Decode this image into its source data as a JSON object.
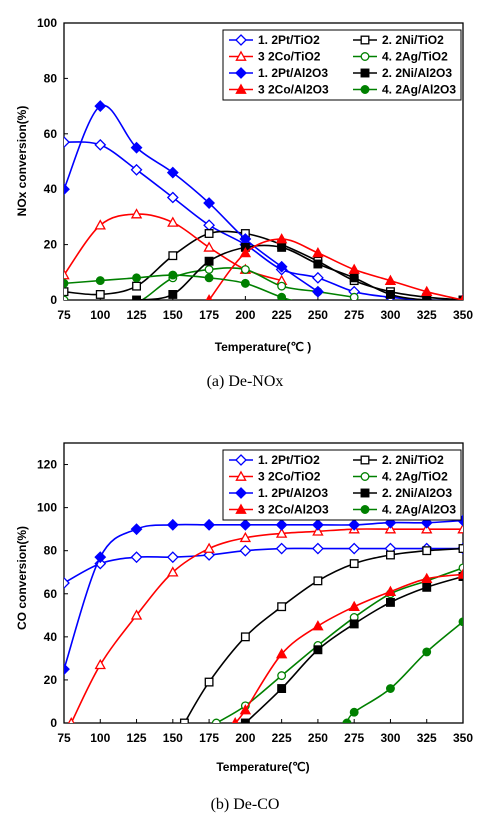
{
  "chart_data": [
    {
      "type": "line",
      "title": "",
      "caption": "(a)  De-NOx",
      "xlabel": "Temperature(℃ )",
      "ylabel": "NOx conversion(%)",
      "xlim": [
        75,
        350
      ],
      "ylim": [
        0,
        100
      ],
      "x_ticks": [
        75,
        100,
        125,
        150,
        175,
        200,
        225,
        250,
        275,
        300,
        325,
        350
      ],
      "y_ticks": [
        0,
        20,
        40,
        60,
        80,
        100
      ],
      "grid": false,
      "legend_position": "top-right",
      "series": [
        {
          "name": "1. 2Pt/TiO2",
          "color": "#0000ff",
          "marker": "diamond-open",
          "x": [
            75,
            100,
            125,
            150,
            175,
            200,
            225,
            250,
            275,
            300,
            325,
            350
          ],
          "y": [
            57,
            56,
            47,
            37,
            27,
            20,
            11,
            8,
            3,
            1,
            0,
            0
          ]
        },
        {
          "name": "2. 2Ni/TiO2",
          "color": "#000000",
          "marker": "square-open",
          "x": [
            75,
            100,
            125,
            150,
            175,
            200,
            225,
            250,
            275,
            300,
            325,
            350
          ],
          "y": [
            3,
            2,
            5,
            16,
            24,
            24,
            20,
            14,
            7,
            3,
            1,
            0
          ]
        },
        {
          "name": "3 2Co/TiO2",
          "color": "#ff0000",
          "marker": "triangle-open",
          "x": [
            75,
            100,
            125,
            150,
            175,
            200,
            225
          ],
          "y": [
            9,
            27,
            31,
            28,
            19,
            11,
            7
          ]
        },
        {
          "name": "4. 2Ag/TiO2",
          "color": "#008000",
          "marker": "circle-open",
          "x": [
            75,
            100,
            125,
            150,
            175,
            200,
            225,
            250,
            275
          ],
          "y": [
            0,
            -2,
            -1,
            8,
            11,
            11,
            5,
            3,
            1
          ]
        },
        {
          "name": "1. 2Pt/Al2O3",
          "color": "#0000ff",
          "marker": "diamond-filled",
          "x": [
            75,
            100,
            125,
            150,
            175,
            200,
            225,
            250
          ],
          "y": [
            40,
            70,
            55,
            46,
            35,
            22,
            12,
            3
          ]
        },
        {
          "name": "2. 2Ni/Al2O3",
          "color": "#000000",
          "marker": "square-filled",
          "x": [
            125,
            150,
            175,
            200,
            225,
            250,
            275,
            300,
            325,
            350
          ],
          "y": [
            0,
            2,
            14,
            19,
            19,
            13,
            8,
            2,
            0,
            0
          ]
        },
        {
          "name": "3 2Co/Al2O3",
          "color": "#ff0000",
          "marker": "triangle-filled",
          "x": [
            175,
            200,
            225,
            250,
            275,
            300,
            325,
            350
          ],
          "y": [
            0,
            17,
            22,
            17,
            11,
            7,
            3,
            0
          ]
        },
        {
          "name": "4. 2Ag/Al2O3",
          "color": "#008000",
          "marker": "circle-filled",
          "x": [
            75,
            100,
            125,
            150,
            175,
            200,
            225,
            250
          ],
          "y": [
            6,
            7,
            8,
            9,
            8,
            6,
            1,
            -3
          ]
        }
      ]
    },
    {
      "type": "line",
      "title": "",
      "caption": "(b)  De-CO",
      "xlabel": "Temperature(℃)",
      "ylabel": "CO conversion(%)",
      "xlim": [
        75,
        350
      ],
      "ylim": [
        0,
        130
      ],
      "x_ticks": [
        75,
        100,
        125,
        150,
        175,
        200,
        225,
        250,
        275,
        300,
        325,
        350
      ],
      "y_ticks": [
        0,
        20,
        40,
        60,
        80,
        100,
        120
      ],
      "grid": false,
      "legend_position": "top-right",
      "series": [
        {
          "name": "1. 2Pt/TiO2",
          "color": "#0000ff",
          "marker": "diamond-open",
          "x": [
            75,
            100,
            125,
            150,
            175,
            200,
            225,
            250,
            275,
            300,
            325,
            350
          ],
          "y": [
            65,
            74,
            77,
            77,
            78,
            80,
            81,
            81,
            81,
            81,
            81,
            81
          ]
        },
        {
          "name": "2. 2Ni/TiO2",
          "color": "#000000",
          "marker": "square-open",
          "x": [
            158,
            175,
            200,
            225,
            250,
            275,
            300,
            325,
            350
          ],
          "y": [
            0,
            19,
            40,
            54,
            66,
            74,
            78,
            80,
            81
          ]
        },
        {
          "name": "3 2Co/TiO2",
          "color": "#ff0000",
          "marker": "triangle-open",
          "x": [
            80,
            100,
            125,
            150,
            175,
            200,
            225,
            250,
            275,
            300,
            325,
            350
          ],
          "y": [
            0,
            27,
            50,
            70,
            81,
            86,
            88,
            89,
            90,
            90,
            90,
            90
          ]
        },
        {
          "name": "4. 2Ag/TiO2",
          "color": "#008000",
          "marker": "circle-open",
          "x": [
            180,
            200,
            225,
            250,
            275,
            300,
            325,
            350
          ],
          "y": [
            0,
            8,
            22,
            36,
            49,
            60,
            66,
            72
          ]
        },
        {
          "name": "1. 2Pt/Al2O3",
          "color": "#0000ff",
          "marker": "diamond-filled",
          "x": [
            75,
            100,
            125,
            150,
            175,
            200,
            225,
            250,
            275,
            300,
            325,
            350
          ],
          "y": [
            25,
            77,
            90,
            92,
            92,
            92,
            92,
            92,
            92,
            93,
            93,
            94
          ]
        },
        {
          "name": "2. 2Ni/Al2O3",
          "color": "#000000",
          "marker": "square-filled",
          "x": [
            200,
            225,
            250,
            275,
            300,
            325,
            350
          ],
          "y": [
            0,
            16,
            34,
            46,
            56,
            63,
            68
          ]
        },
        {
          "name": "3 2Co/Al2O3",
          "color": "#ff0000",
          "marker": "triangle-filled",
          "x": [
            193,
            200,
            225,
            250,
            275,
            300,
            325,
            350
          ],
          "y": [
            0,
            6,
            32,
            45,
            54,
            61,
            67,
            69
          ]
        },
        {
          "name": "4. 2Ag/Al2O3",
          "color": "#008000",
          "marker": "circle-filled",
          "x": [
            270,
            275,
            300,
            325,
            350
          ],
          "y": [
            0,
            5,
            16,
            33,
            47
          ]
        }
      ]
    }
  ]
}
